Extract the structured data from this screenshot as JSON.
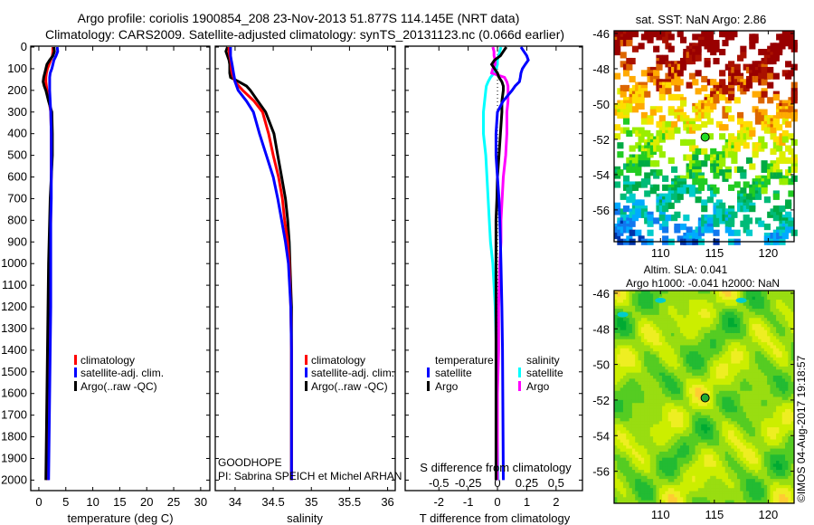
{
  "header": {
    "title_line1": "Argo profile: coriolis 1900854_208 23-Nov-2013 51.877S 114.145E (NRT data)",
    "title_line2": "Climatology: CARS2009. Satellite-adjusted climatology: synTS_20131123.nc (0.066d earlier)"
  },
  "credits": {
    "project": "GOODHOPE",
    "pi": "PI: Sabrina SPEICH et Michel ARHAN",
    "copyright": "©IMOS 04-Aug-2017 19:18:57"
  },
  "colors": {
    "climatology": "#ff0000",
    "satellite": "#0000ff",
    "argo": "#000000",
    "sal_satellite": "#00ffff",
    "sal_argo": "#ff00ff"
  },
  "chart_data": [
    {
      "type": "line",
      "name": "temperature-profile",
      "xlabel": "temperature (deg C)",
      "ylabel": "",
      "xlim": [
        -1.5,
        31.7
      ],
      "ylim": [
        2050,
        0
      ],
      "xticks": [
        "0",
        "5",
        "10",
        "15",
        "20",
        "25",
        "30"
      ],
      "yticks": [
        "0",
        "100",
        "200",
        "300",
        "400",
        "500",
        "600",
        "700",
        "800",
        "900",
        "1000",
        "1100",
        "1200",
        "1300",
        "1400",
        "1500",
        "1600",
        "1700",
        "1800",
        "1900",
        "2000"
      ],
      "depth": [
        0,
        20,
        40,
        60,
        80,
        100,
        120,
        140,
        160,
        180,
        200,
        250,
        300,
        400,
        500,
        600,
        700,
        800,
        900,
        1000,
        1200,
        1400,
        1600,
        1800,
        2000
      ],
      "legend": [
        "climatology",
        "satellite-adj. clim.",
        "Argo(..raw -QC)"
      ],
      "series": [
        {
          "name": "climatology",
          "color": "#ff0000",
          "values": [
            2.6,
            2.6,
            2.5,
            2.2,
            1.9,
            1.6,
            1.4,
            1.3,
            1.3,
            1.4,
            1.5,
            1.9,
            2.2,
            2.3,
            2.3,
            2.3,
            2.2,
            2.2,
            2.1,
            2.1,
            2.0,
            1.9,
            1.8,
            1.7,
            1.6
          ]
        },
        {
          "name": "Argo",
          "color": "#000000",
          "values": [
            2.8,
            2.9,
            2.6,
            2.0,
            1.5,
            1.3,
            1.1,
            0.9,
            0.8,
            1.0,
            1.3,
            1.8,
            2.4,
            2.5,
            2.5,
            2.3,
            2.1,
            2.0,
            1.9,
            1.8,
            1.7,
            1.6,
            1.5,
            1.4,
            1.3
          ]
        },
        {
          "name": "satellite-adj. clim.",
          "color": "#0000ff",
          "values": [
            3.4,
            3.5,
            3.2,
            2.8,
            2.6,
            2.4,
            2.1,
            2.0,
            2.0,
            2.0,
            2.0,
            2.1,
            2.2,
            2.3,
            2.3,
            2.3,
            2.3,
            2.2,
            2.2,
            2.2,
            2.2,
            2.1,
            2.0,
            1.9,
            1.8
          ]
        }
      ]
    },
    {
      "type": "line",
      "name": "salinity-profile",
      "xlabel": "salinity",
      "xlim": [
        33.74,
        36.1
      ],
      "ylim": [
        2050,
        0
      ],
      "xticks": [
        "34",
        "34.5",
        "35",
        "35.5",
        "36"
      ],
      "depth": [
        0,
        20,
        40,
        60,
        80,
        100,
        120,
        140,
        160,
        180,
        200,
        250,
        300,
        400,
        500,
        600,
        700,
        800,
        900,
        1000,
        1200,
        1400,
        1600,
        1800,
        2000
      ],
      "legend": [
        "climatology",
        "satellite-adj. clim.",
        "Argo(..raw -QC)"
      ],
      "series": [
        {
          "name": "Argo",
          "color": "#000000",
          "values": [
            33.9,
            33.88,
            33.9,
            33.92,
            33.93,
            33.93,
            33.93,
            33.94,
            34.05,
            34.15,
            34.2,
            34.3,
            34.4,
            34.51,
            34.56,
            34.61,
            34.66,
            34.69,
            34.71,
            34.72,
            34.74,
            34.74,
            34.74,
            34.74,
            34.74
          ]
        },
        {
          "name": "climatology",
          "color": "#ff0000",
          "values": [
            33.92,
            33.92,
            33.93,
            33.94,
            33.95,
            33.95,
            33.96,
            33.98,
            34.0,
            34.05,
            34.1,
            34.25,
            34.36,
            34.44,
            34.5,
            34.57,
            34.62,
            34.65,
            34.69,
            34.71,
            34.73,
            34.74,
            34.74,
            34.74,
            34.74
          ]
        },
        {
          "name": "satellite-adj. clim.",
          "color": "#0000ff",
          "values": [
            33.94,
            33.94,
            33.94,
            33.95,
            33.96,
            33.97,
            33.98,
            33.99,
            34.0,
            34.02,
            34.04,
            34.15,
            34.24,
            34.32,
            34.41,
            34.5,
            34.56,
            34.61,
            34.66,
            34.7,
            34.73,
            34.74,
            34.74,
            34.74,
            34.74
          ]
        }
      ]
    },
    {
      "type": "line",
      "name": "difference-profile",
      "xlabel": "T difference from climatology",
      "x2label": "S difference from climatology",
      "xlim": [
        -3.15,
        2.9
      ],
      "x2lim": [
        -0.7875,
        0.725
      ],
      "ylim": [
        2050,
        0
      ],
      "xticks": [
        "-2",
        "-1",
        "0",
        "1",
        "2"
      ],
      "x2ticks": [
        "-0.5",
        "-0.25",
        "0",
        "0.25",
        "0.5"
      ],
      "legend_titles": [
        "temperature",
        "salinity"
      ],
      "legend_items": [
        "satellite",
        "Argo"
      ],
      "depth": [
        0,
        20,
        40,
        60,
        80,
        100,
        120,
        140,
        160,
        180,
        200,
        250,
        300,
        400,
        500,
        600,
        700,
        800,
        900,
        1000,
        1200,
        1400,
        1600,
        1800,
        2000
      ],
      "series": [
        {
          "name": "salinity satellite",
          "axis": "S",
          "color": "#00ffff",
          "values": [
            0.03,
            0.02,
            0.01,
            0.0,
            0.0,
            -0.01,
            -0.03,
            -0.06,
            -0.08,
            -0.095,
            -0.1,
            -0.11,
            -0.12,
            -0.12,
            -0.1,
            -0.09,
            -0.08,
            -0.07,
            -0.06,
            -0.04,
            -0.02,
            -0.01,
            0,
            0,
            0.005
          ]
        },
        {
          "name": "salinity Argo",
          "axis": "S",
          "color": "#ff00ff",
          "values": [
            -0.04,
            -0.03,
            -0.03,
            -0.02,
            -0.02,
            -0.04,
            -0.05,
            0.06,
            0.08,
            0.09,
            0.09,
            0.09,
            0.08,
            0.08,
            0.07,
            0.05,
            0.04,
            0.03,
            0.03,
            0.02,
            0.01,
            0.01,
            0.0,
            0.0,
            0.0
          ]
        },
        {
          "name": "temperature Argo",
          "axis": "T",
          "color": "#000000",
          "values": [
            0.3,
            0.2,
            0.1,
            -0.1,
            -0.2,
            -0.1,
            0,
            0.05,
            0.15,
            0.2,
            0.2,
            0.15,
            0.15,
            0.1,
            0.05,
            0,
            -0.02,
            -0.05,
            -0.05,
            -0.05,
            -0.05,
            -0.05,
            -0.05,
            -0.05,
            -0.05
          ]
        },
        {
          "name": "temperature satellite",
          "axis": "T",
          "color": "#0000ff",
          "values": [
            0.8,
            0.9,
            1.0,
            1.05,
            0.95,
            0.85,
            0.8,
            0.78,
            0.75,
            0.6,
            0.5,
            0.19,
            0.0,
            -0.05,
            -0.05,
            0,
            0.05,
            0.08,
            0.1,
            0.12,
            0.15,
            0.17,
            0.18,
            0.19,
            0.2
          ]
        }
      ]
    },
    {
      "type": "heatmap",
      "name": "sst-map",
      "title": "sat. SST: NaN Argo: 2.86",
      "xlim": [
        105.7,
        122.4
      ],
      "ylim": [
        -57.8,
        -45.85
      ],
      "xticks": [
        "110",
        "115",
        "120"
      ],
      "yticks": [
        "-46",
        "-48",
        "-50",
        "-52",
        "-54",
        "-56"
      ],
      "marker": {
        "lon": 114.145,
        "lat": -51.877
      }
    },
    {
      "type": "heatmap",
      "name": "sla-map",
      "title_line1": "Altim. SLA: 0.041",
      "title_line2": "Argo h1000: -0.041 h2000: NaN",
      "xlim": [
        105.7,
        122.4
      ],
      "ylim": [
        -57.8,
        -45.85
      ],
      "xticks": [
        "110",
        "115",
        "120"
      ],
      "yticks": [
        "-46",
        "-48",
        "-50",
        "-52",
        "-54",
        "-56"
      ],
      "marker": {
        "lon": 114.145,
        "lat": -51.877
      }
    }
  ]
}
